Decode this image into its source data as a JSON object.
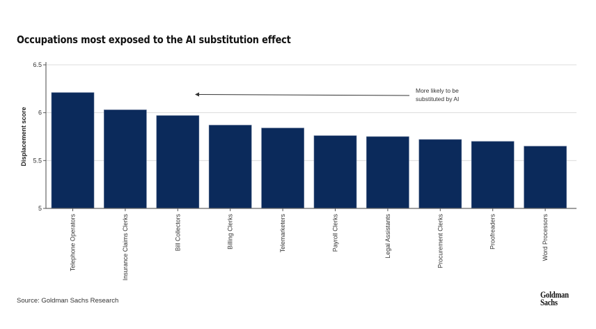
{
  "chart_data": {
    "type": "bar",
    "title": "Occupations most exposed to the AI substitution effect",
    "xlabel": "",
    "ylabel": "Displacement score",
    "ylim": [
      5,
      6.5
    ],
    "yticks": [
      5,
      5.5,
      6,
      6.5
    ],
    "ytick_labels": [
      "5",
      "5.5",
      "6",
      "6.5"
    ],
    "grid": true,
    "categories": [
      "Telephone Operators",
      "Insurance Claims Clerks",
      "Bill Collectors",
      "Billing Clerks",
      "Telemarketers",
      "Payroll Clerks",
      "Legal Assistants",
      "Procurement Clerks",
      "Proofreaders",
      "Word Processors"
    ],
    "values": [
      6.21,
      6.03,
      5.97,
      5.87,
      5.84,
      5.76,
      5.75,
      5.72,
      5.7,
      5.65
    ],
    "bar_color": "#0b2a5b",
    "annotation": {
      "lines": [
        "More likely to be",
        "substituted by AI"
      ],
      "arrow_direction": "left"
    }
  },
  "footer": {
    "source": "Source: Goldman Sachs Research",
    "logo_line1": "Goldman",
    "logo_line2": "Sachs"
  }
}
